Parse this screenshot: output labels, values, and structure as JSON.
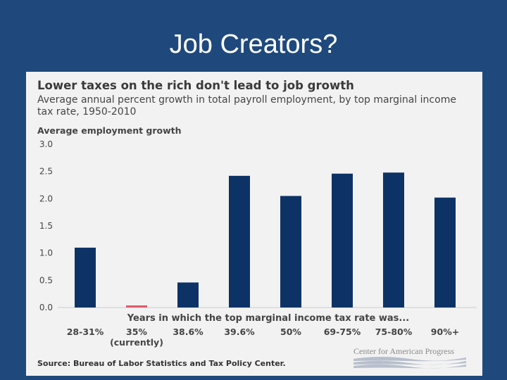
{
  "slide": {
    "title": "Job Creators?"
  },
  "chart_data": {
    "type": "bar",
    "title": "Lower taxes on the rich don't lead to job growth",
    "subtitle": "Average annual percent growth in total payroll employment, by top marginal income tax rate, 1950-2010",
    "ylabel": "Average employment growth",
    "xlabel": "Years in which the top marginal income tax rate was...",
    "categories": [
      "28-31%",
      "35%",
      "38.6%",
      "39.6%",
      "50%",
      "69-75%",
      "75-80%",
      "90%+"
    ],
    "category_notes": [
      "",
      "(currently)",
      "",
      "",
      "",
      "",
      "",
      ""
    ],
    "values": [
      1.1,
      0.03,
      0.46,
      2.42,
      2.05,
      2.46,
      2.48,
      2.02
    ],
    "bar_colors": [
      "#0d3366",
      "#e05a6a",
      "#0d3366",
      "#0d3366",
      "#0d3366",
      "#0d3366",
      "#0d3366",
      "#0d3366"
    ],
    "yticks": [
      "0.0",
      "0.5",
      "1.0",
      "1.5",
      "2.0",
      "2.5",
      "3.0"
    ],
    "ylim": [
      0,
      3.0
    ],
    "grid": false,
    "source": "Source: Bureau of Labor Statistics and Tax Policy Center.",
    "logo_text": "Center for American Progress"
  }
}
